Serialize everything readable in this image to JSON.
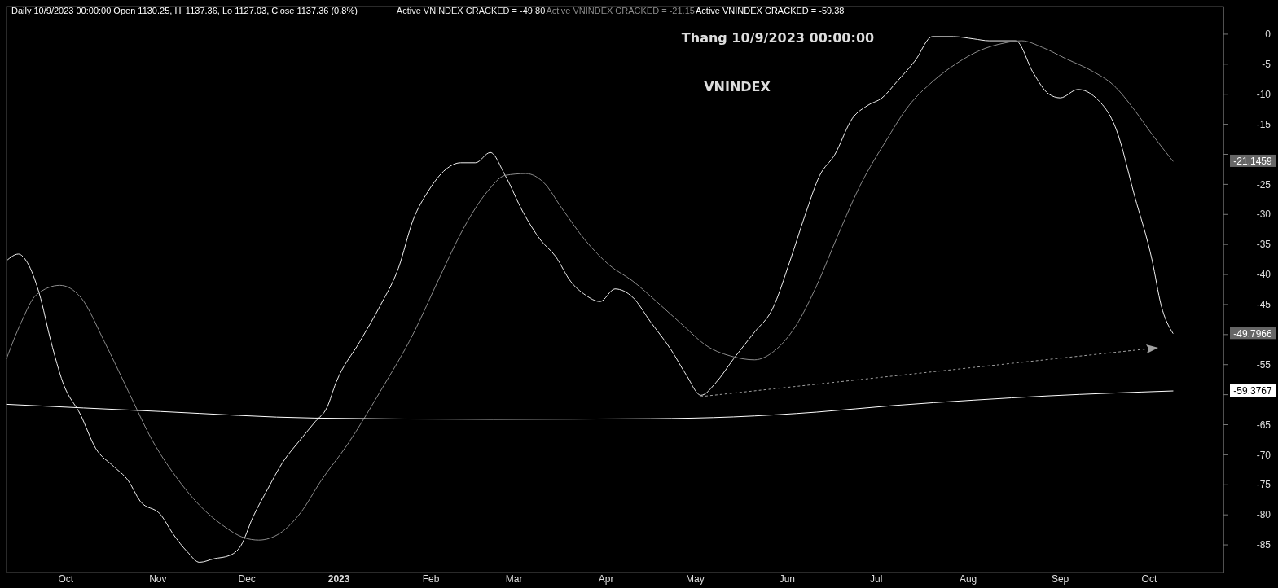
{
  "chart_data": {
    "type": "line",
    "title": "Daily 10/9/2023 00:00:00 Open 1130.25, Hi 1137.36, Lo 1127.03, Close 1137.36 (0.8%)",
    "subtitle": "Thang 10/9/2023 00:00:00",
    "annotations": [
      "VNINDEX",
      "-49.7966",
      "-21.1459",
      "-59.3767"
    ],
    "xlim": [
      "2022-09-11",
      "2023-10-26"
    ],
    "xticks": [
      {
        "value": "2022-10-01",
        "label": "Oct"
      },
      {
        "value": "2022-11-01",
        "label": "Nov"
      },
      {
        "value": "2022-12-01",
        "label": "Dec"
      },
      {
        "value": "2023-01-01",
        "label": "2023"
      },
      {
        "value": "2023-02-01",
        "label": "Feb"
      },
      {
        "value": "2023-03-01",
        "label": "Mar"
      },
      {
        "value": "2023-04-01",
        "label": "Apr"
      },
      {
        "value": "2023-05-01",
        "label": "May"
      },
      {
        "value": "2023-06-01",
        "label": "Jun"
      },
      {
        "value": "2023-07-01",
        "label": "Jul"
      },
      {
        "value": "2023-08-01",
        "label": "Aug"
      },
      {
        "value": "2023-09-01",
        "label": "Sep"
      },
      {
        "value": "2023-10-01",
        "label": "Oct"
      }
    ],
    "ylim": [
      -89.6,
      4.6
    ],
    "yticks": [
      0,
      -5,
      -10,
      -15,
      {
        "value": -20,
        "label": null
      },
      -25,
      -30,
      -35,
      -40,
      -45,
      {
        "value": -50,
        "label": null
      },
      -55,
      {
        "value": -60,
        "label": null
      },
      -65,
      -70,
      -75,
      -80,
      -85
    ],
    "grid": false,
    "legend": "top left",
    "marker": "none",
    "series": [
      {
        "name": "Active VNINDEX CRACKED = -49.80",
        "color": "#f0f0f0",
        "x": [
          "2022-09-11",
          "2022-09-15",
          "2022-09-18",
          "2022-09-22",
          "2022-09-26",
          "2022-09-30",
          "2022-10-06",
          "2022-10-11",
          "2022-10-17",
          "2022-10-22",
          "2022-10-26",
          "2022-11-02",
          "2022-11-06",
          "2022-11-11",
          "2022-11-15",
          "2022-11-20",
          "2022-11-25",
          "2022-11-29",
          "2022-12-03",
          "2022-12-08",
          "2022-12-13",
          "2022-12-19",
          "2022-12-24",
          "2022-12-28",
          "2022-12-31",
          "2023-01-08",
          "2023-01-15",
          "2023-01-21",
          "2023-01-26",
          "2023-01-31",
          "2023-02-06",
          "2023-02-11",
          "2023-02-16",
          "2023-02-21",
          "2023-02-26",
          "2023-03-04",
          "2023-03-10",
          "2023-03-15",
          "2023-03-20",
          "2023-03-25",
          "2023-03-30",
          "2023-04-04",
          "2023-04-10",
          "2023-04-16",
          "2023-04-23",
          "2023-04-28",
          "2023-05-03",
          "2023-05-08",
          "2023-05-14",
          "2023-05-21",
          "2023-05-27",
          "2023-06-02",
          "2023-06-07",
          "2023-06-12",
          "2023-06-17",
          "2023-06-23",
          "2023-06-28",
          "2023-07-03",
          "2023-07-08",
          "2023-07-14",
          "2023-07-20",
          "2023-07-27",
          "2023-08-03",
          "2023-08-08",
          "2023-08-17",
          "2023-08-23",
          "2023-08-28",
          "2023-09-01",
          "2023-09-07",
          "2023-09-13",
          "2023-09-20",
          "2023-09-26",
          "2023-10-02",
          "2023-10-05",
          "2023-10-09"
        ],
        "values": [
          -37.7,
          -36.6,
          -38.0,
          -43.1,
          -51.2,
          -58.0,
          -63.4,
          -68.9,
          -71.9,
          -74.3,
          -77.7,
          -80.0,
          -83.1,
          -86.2,
          -87.9,
          -87.3,
          -86.8,
          -85.1,
          -80.4,
          -75.7,
          -71.3,
          -67.5,
          -64.5,
          -62.1,
          -58.0,
          -51.2,
          -45.1,
          -39.0,
          -30.9,
          -26.2,
          -22.5,
          -21.4,
          -21.4,
          -19.7,
          -23.5,
          -29.6,
          -34.3,
          -37.0,
          -41.1,
          -43.4,
          -44.5,
          -42.4,
          -43.8,
          -47.9,
          -52.6,
          -56.7,
          -60.1,
          -58.0,
          -54.0,
          -49.6,
          -45.8,
          -37.7,
          -30.2,
          -23.5,
          -20.1,
          -14.0,
          -11.9,
          -10.6,
          -7.9,
          -4.5,
          -0.4,
          -0.4,
          -0.8,
          -1.1,
          -1.1,
          -6.5,
          -9.9,
          -10.6,
          -9.2,
          -10.6,
          -16.0,
          -26.8,
          -37.7,
          -45.1,
          -49.7966
        ]
      },
      {
        "name": "Active VNINDEX CRACKED = -21.15",
        "color": "#8c8c8c",
        "x": [
          "2022-09-11",
          "2022-09-16",
          "2022-09-21",
          "2022-09-29",
          "2022-10-06",
          "2022-10-14",
          "2022-10-22",
          "2022-10-30",
          "2022-11-07",
          "2022-11-15",
          "2022-11-23",
          "2022-11-30",
          "2022-12-05",
          "2022-12-12",
          "2022-12-19",
          "2022-12-26",
          "2023-01-04",
          "2023-01-15",
          "2023-01-26",
          "2023-02-04",
          "2023-02-12",
          "2023-02-20",
          "2023-02-26",
          "2023-03-05",
          "2023-03-11",
          "2023-03-17",
          "2023-03-25",
          "2023-04-02",
          "2023-04-10",
          "2023-04-18",
          "2023-04-27",
          "2023-05-05",
          "2023-05-14",
          "2023-05-21",
          "2023-05-28",
          "2023-06-04",
          "2023-06-11",
          "2023-06-18",
          "2023-06-26",
          "2023-07-04",
          "2023-07-12",
          "2023-07-20",
          "2023-07-28",
          "2023-08-05",
          "2023-08-13",
          "2023-08-19",
          "2023-08-26",
          "2023-09-03",
          "2023-09-12",
          "2023-09-19",
          "2023-09-26",
          "2023-10-02",
          "2023-10-09"
        ],
        "values": [
          -54.0,
          -47.9,
          -43.4,
          -41.8,
          -43.8,
          -51.2,
          -59.4,
          -67.5,
          -73.6,
          -78.4,
          -81.8,
          -83.8,
          -84.2,
          -83.1,
          -79.7,
          -74.3,
          -68.2,
          -59.4,
          -49.9,
          -40.4,
          -32.3,
          -26.2,
          -23.5,
          -23.2,
          -24.7,
          -28.9,
          -34.3,
          -38.4,
          -41.1,
          -44.5,
          -48.5,
          -51.9,
          -53.7,
          -54.2,
          -52.6,
          -48.5,
          -41.8,
          -33.6,
          -24.8,
          -18.0,
          -11.9,
          -7.9,
          -4.9,
          -2.7,
          -1.5,
          -1.1,
          -2.2,
          -4.1,
          -6.2,
          -8.5,
          -12.6,
          -16.7,
          -21.1459
        ]
      },
      {
        "name": "Active VNINDEX CRACKED = -59.38",
        "color": "#ffffff",
        "x": [
          "2022-09-11",
          "2022-11-02",
          "2022-12-24",
          "2023-02-22",
          "2023-04-16",
          "2023-05-14",
          "2023-06-11",
          "2023-07-07",
          "2023-08-03",
          "2023-08-28",
          "2023-10-09"
        ],
        "values": [
          -61.6,
          -62.8,
          -63.9,
          -64.1,
          -64.0,
          -63.7,
          -62.9,
          -61.8,
          -60.9,
          -60.2,
          -59.3767
        ]
      }
    ]
  }
}
